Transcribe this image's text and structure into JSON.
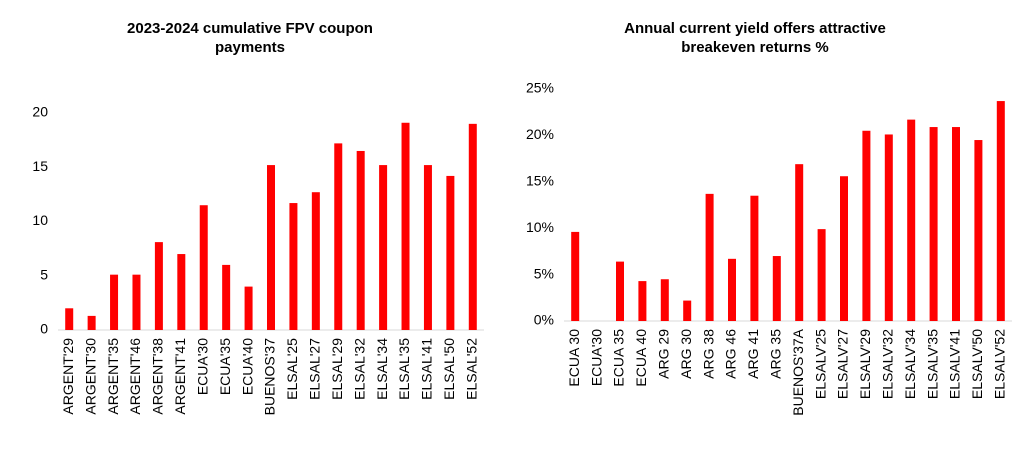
{
  "chart_data": [
    {
      "type": "bar",
      "title": "2023-2024 cumulative FPV coupon payments",
      "categories": [
        "ARGENT'29",
        "ARGENT'30",
        "ARGENT'35",
        "ARGENT'46",
        "ARGENT'38",
        "ARGENT'41",
        "ECUA'30",
        "ECUA'35",
        "ECUA'40",
        "BUENOS'37",
        "ELSAL'25",
        "ELSAL'27",
        "ELSAL'29",
        "ELSAL'32",
        "ELSAL'34",
        "ELSAL'35",
        "ELSAL'41",
        "ELSAL'50",
        "ELSAL'52"
      ],
      "values": [
        2.0,
        1.3,
        5.1,
        5.1,
        8.1,
        7.0,
        11.5,
        6.0,
        4.0,
        15.2,
        11.7,
        12.7,
        17.2,
        16.5,
        15.2,
        19.1,
        15.2,
        14.2,
        19.0
      ],
      "color": "#ff0000",
      "ylim": [
        0,
        20
      ],
      "yticks": [
        0,
        5,
        10,
        15,
        20
      ]
    },
    {
      "type": "bar",
      "title": "Annual current yield offers attractive breakeven returns %",
      "categories": [
        "ECUA 30",
        "ECUA'30",
        "ECUA 35",
        "ECUA 40",
        "ARG 29",
        "ARG 30",
        "ARG 38",
        "ARG 46",
        "ARG 41",
        "ARG 35",
        "BUENOS'37A",
        "ELSALV'25",
        "ELSALV'27",
        "ELSALV'29",
        "ELSALV'32",
        "ELSALV'34",
        "ELSALV'35",
        "ELSALV'41",
        "ELSALV'50",
        "ELSALV'52"
      ],
      "values": [
        9.6,
        null,
        6.4,
        4.3,
        4.5,
        2.2,
        13.7,
        6.7,
        13.5,
        7.0,
        16.9,
        9.9,
        15.6,
        20.5,
        20.1,
        21.7,
        20.9,
        20.9,
        19.5,
        23.7
      ],
      "color": "#ff0000",
      "ylim": [
        0,
        25
      ],
      "yticks": [
        {
          "value": 0,
          "label": "0%"
        },
        {
          "value": 5,
          "label": "5%"
        },
        {
          "value": 10,
          "label": "10%"
        },
        {
          "value": 15,
          "label": "15%"
        },
        {
          "value": 20,
          "label": "20%"
        },
        {
          "value": 25,
          "label": "25%"
        }
      ]
    }
  ]
}
